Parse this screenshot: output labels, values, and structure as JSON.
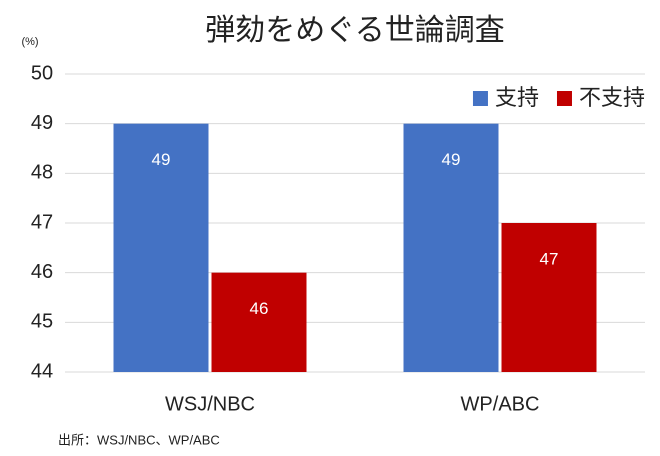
{
  "chart_data": {
    "type": "bar",
    "title": "弾劾をめぐる世論調査",
    "y_unit": "(%)",
    "categories": [
      "WSJ/NBC",
      "WP/ABC"
    ],
    "series": [
      {
        "name": "支持",
        "color": "#4472c4",
        "values": [
          49,
          49
        ]
      },
      {
        "name": "不支持",
        "color": "#c00000",
        "values": [
          46,
          47
        ]
      }
    ],
    "ylim": [
      44,
      50
    ],
    "yticks": [
      44,
      45,
      46,
      47,
      48,
      49,
      50
    ],
    "grid": true,
    "legend": "top-right",
    "source": "出所：WSJ/NBC、WP/ABC"
  }
}
